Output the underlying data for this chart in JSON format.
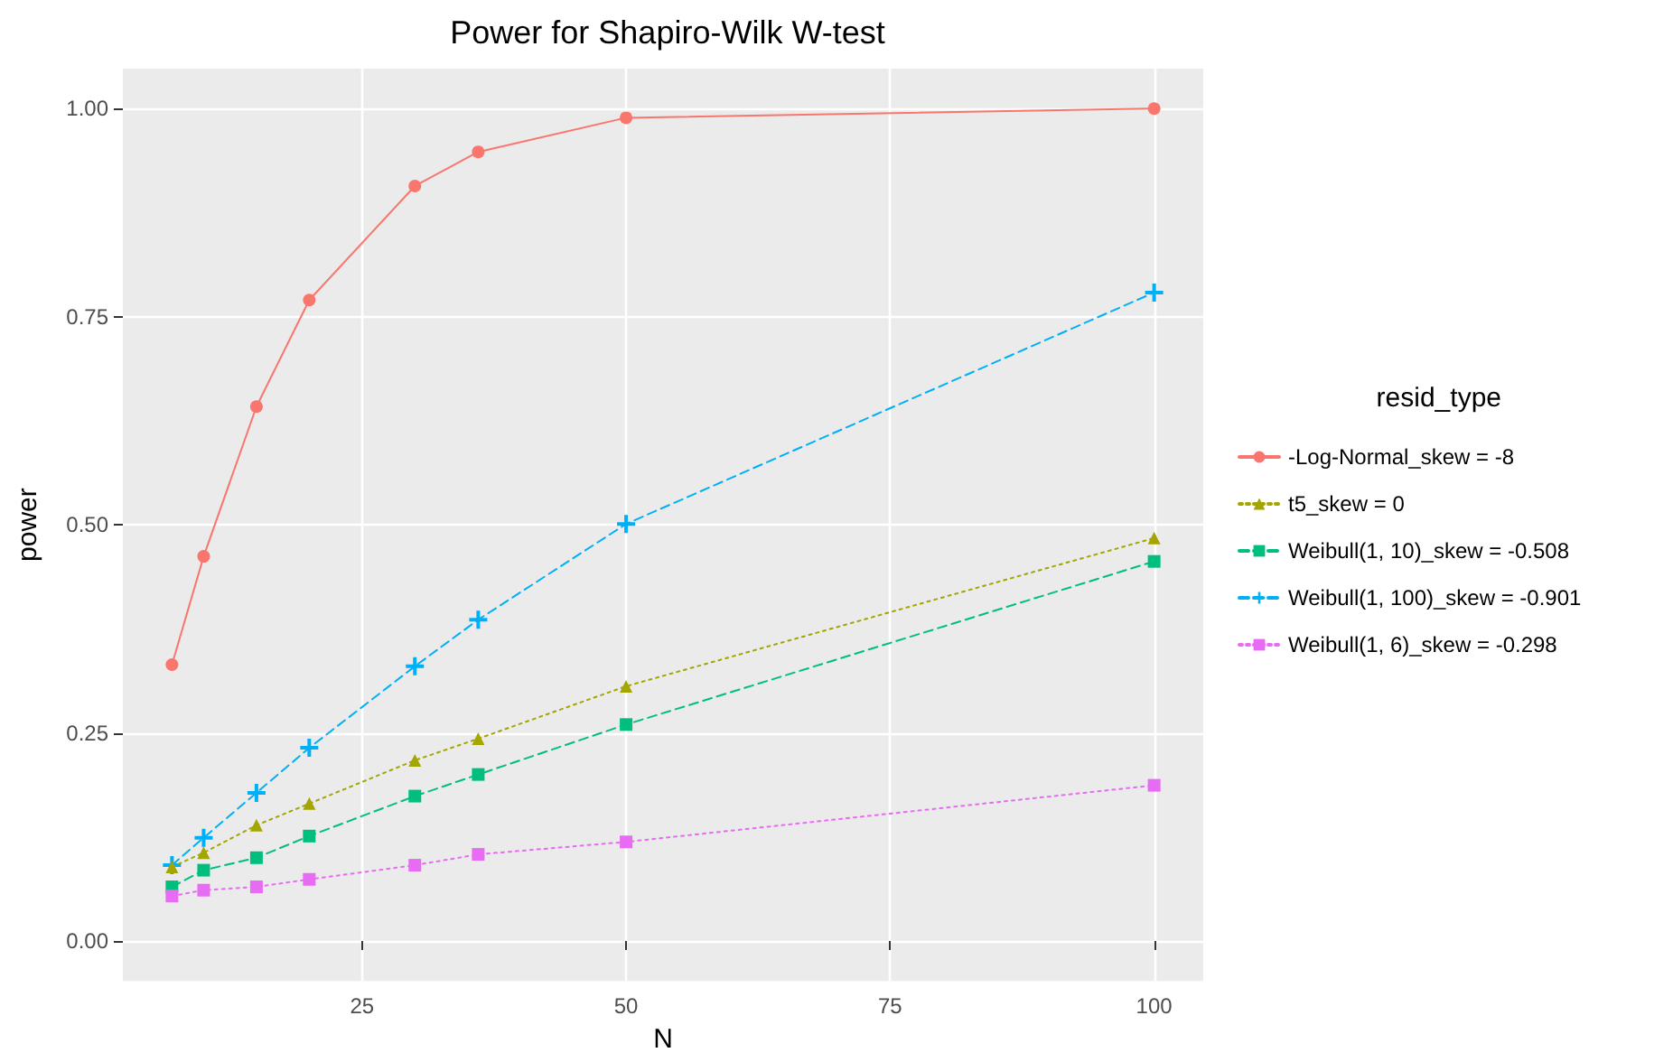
{
  "chart_data": {
    "type": "line",
    "title": "Power for Shapiro-Wilk W-test",
    "xlabel": "N",
    "ylabel": "power",
    "legend_title": "resid_type",
    "legend": "right",
    "grid": true,
    "x": [
      7,
      10,
      15,
      20,
      30,
      36,
      50,
      100
    ],
    "xlim": [
      2.35,
      104.65
    ],
    "xticks": [
      25,
      50,
      75,
      100
    ],
    "ylim": [
      -0.048,
      1.048
    ],
    "yticks": [
      {
        "value": 0,
        "label": "0.00"
      },
      {
        "value": 0.25,
        "label": "0.25"
      },
      {
        "value": 0.5,
        "label": "0.50"
      },
      {
        "value": 0.75,
        "label": "0.75"
      },
      {
        "value": 1,
        "label": "1.00"
      }
    ],
    "series": [
      {
        "name": "-Log-Normal_skew = -8",
        "color": "#f8766d",
        "marker": "circle",
        "line_style": "solid",
        "values": [
          0.332,
          0.462,
          0.642,
          0.77,
          0.907,
          0.948,
          0.989,
          1.0
        ]
      },
      {
        "name": "t5_skew = 0",
        "color": "#a3a500",
        "marker": "triangle",
        "line_style": "dotted",
        "values": [
          0.089,
          0.106,
          0.139,
          0.165,
          0.217,
          0.243,
          0.306,
          0.484
        ]
      },
      {
        "name": "Weibull(1, 10)_skew = -0.508",
        "color": "#00bf7d",
        "marker": "square",
        "line_style": "dashed",
        "values": [
          0.065,
          0.085,
          0.1,
          0.126,
          0.174,
          0.2,
          0.26,
          0.456
        ]
      },
      {
        "name": "Weibull(1, 100)_skew = -0.901",
        "color": "#00b0f6",
        "marker": "cross",
        "line_style": "dashed",
        "values": [
          0.091,
          0.124,
          0.178,
          0.232,
          0.33,
          0.386,
          0.501,
          0.779
        ]
      },
      {
        "name": "Weibull(1, 6)_skew = -0.298",
        "color": "#e76bf3",
        "marker": "square",
        "line_style": "dotted",
        "values": [
          0.054,
          0.061,
          0.065,
          0.074,
          0.091,
          0.104,
          0.119,
          0.187
        ]
      }
    ]
  }
}
